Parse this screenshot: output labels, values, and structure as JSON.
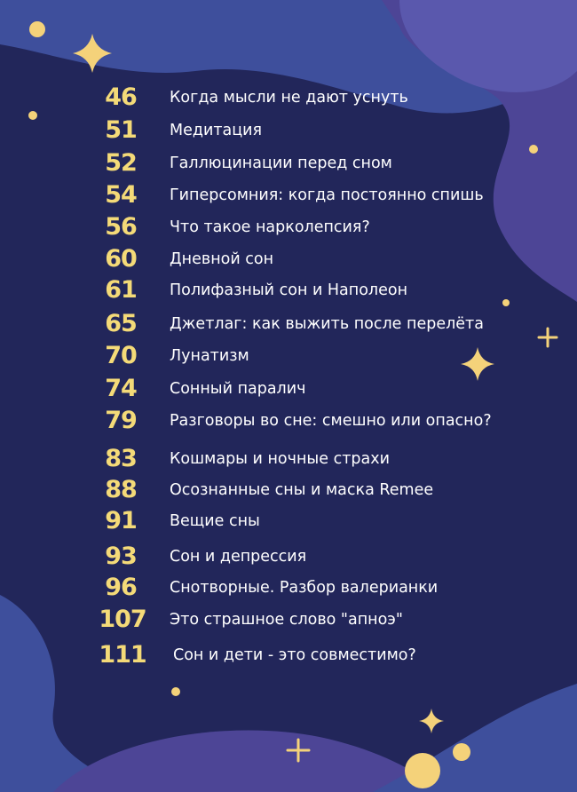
{
  "toc": [
    {
      "page": "46",
      "title": "Когда мысли не дают уснуть"
    },
    {
      "page": "51",
      "title": "Медитация"
    },
    {
      "page": "52",
      "title": "Галлюцинации перед сном"
    },
    {
      "page": "54",
      "title": "Гиперсомния: когда постоянно спишь"
    },
    {
      "page": "56",
      "title": "Что такое нарколепсия?"
    },
    {
      "page": "60",
      "title": "Дневной сон"
    },
    {
      "page": "61",
      "title": "Полифазный сон и Наполеон"
    },
    {
      "page": "65",
      "title": "Джетлаг: как выжить после перелёта"
    },
    {
      "page": "70",
      "title": "Лунатизм"
    },
    {
      "page": "74",
      "title": "Сонный паралич"
    },
    {
      "page": "79",
      "title": "Разговоры во сне: смешно или опасно?"
    },
    {
      "page": "83",
      "title": "Кошмары и ночные страхи"
    },
    {
      "page": "88",
      "title": "Осознанные сны и маска Remee"
    },
    {
      "page": "91",
      "title": "Вещие сны"
    },
    {
      "page": "93",
      "title": "Сон и депрессия"
    },
    {
      "page": "96",
      "title": "Снотворные. Разбор валерианки"
    },
    {
      "page": "107",
      "title": "Это страшное слово \"апноэ\""
    },
    {
      "page": "111",
      "title": "Сон и дети - это совместимо?"
    }
  ],
  "colors": {
    "background": "#22265a",
    "page_number": "#f4da78",
    "title": "#ffffff",
    "blob_blue": "#3e4f9c",
    "blob_purple": "#4d4596",
    "decor": "#f4d27a"
  }
}
